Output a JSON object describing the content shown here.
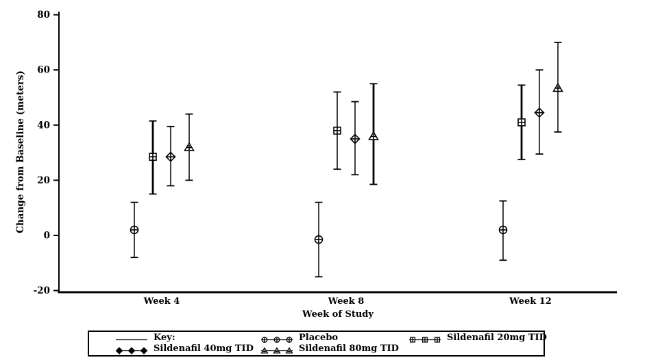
{
  "chart_data": {
    "type": "errorbar",
    "title": "",
    "xlabel": "Week of Study",
    "ylabel": "Change from Baseline (meters)",
    "categories": [
      "Week 4",
      "Week 8",
      "Week 12"
    ],
    "ylim": [
      -20,
      80
    ],
    "yticks": [
      -20,
      0,
      20,
      40,
      60,
      80
    ],
    "grid": false,
    "series": [
      {
        "name": "Placebo",
        "marker": "circle-plus",
        "offset": -40,
        "means": [
          2,
          -1.5,
          2
        ],
        "lower": [
          -8,
          -15,
          -9
        ],
        "upper": [
          12,
          12,
          12.5
        ],
        "thick": [
          false,
          false,
          false
        ]
      },
      {
        "name": "Sildenafil 20mg TID",
        "marker": "square-plus",
        "offset": -13,
        "means": [
          28.5,
          38,
          41
        ],
        "lower": [
          15,
          24,
          27.5
        ],
        "upper": [
          41.5,
          52,
          54.5
        ],
        "thick": [
          true,
          false,
          true
        ]
      },
      {
        "name": "Sildenafil 40mg TID",
        "marker": "diamond-plus",
        "offset": 13,
        "means": [
          28.5,
          35,
          44.5
        ],
        "lower": [
          18,
          22,
          29.5
        ],
        "upper": [
          39.5,
          48.5,
          60
        ],
        "thick": [
          false,
          false,
          false
        ]
      },
      {
        "name": "Sildenafil 80mg TID",
        "marker": "triangle-plus",
        "offset": 40,
        "means": [
          32,
          36,
          53.5
        ],
        "lower": [
          20,
          18.5,
          37.5
        ],
        "upper": [
          44,
          55,
          70
        ],
        "thick": [
          false,
          true,
          false
        ]
      }
    ],
    "legend": {
      "position": "bottom",
      "key_label": "Key:"
    },
    "colors": {
      "foreground": "#000000",
      "background": "#ffffff"
    }
  }
}
